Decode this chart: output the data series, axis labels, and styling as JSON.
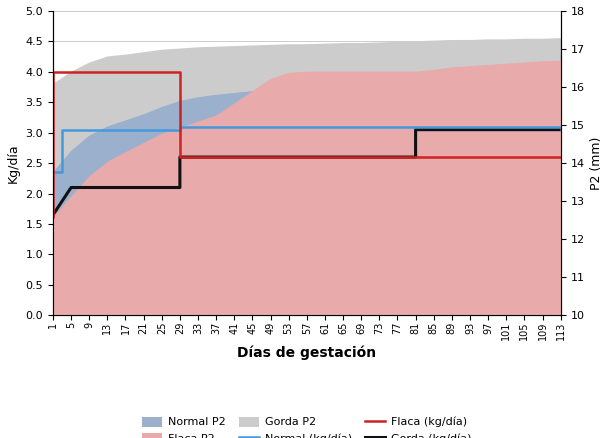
{
  "xlabel": "Días de gestación",
  "ylabel_left": "Kg/día",
  "ylabel_right": "P2 (mm)",
  "ylim_left": [
    0.0,
    5.0
  ],
  "ylim_right": [
    10,
    18
  ],
  "yticks_left": [
    0.0,
    0.5,
    1.0,
    1.5,
    2.0,
    2.5,
    3.0,
    3.5,
    4.0,
    4.5,
    5.0
  ],
  "yticks_right": [
    10,
    11,
    12,
    13,
    14,
    15,
    16,
    17,
    18
  ],
  "xtick_labels": [
    "1",
    "5",
    "9",
    "13",
    "17",
    "21",
    "25",
    "29",
    "33",
    "37",
    "41",
    "45",
    "49",
    "53",
    "57",
    "61",
    "65",
    "69",
    "73",
    "77",
    "81",
    "85",
    "89",
    "93",
    "97",
    "101",
    "105",
    "109",
    "113"
  ],
  "days": [
    1,
    5,
    9,
    13,
    17,
    21,
    25,
    29,
    33,
    37,
    41,
    45,
    49,
    53,
    57,
    61,
    65,
    69,
    73,
    77,
    81,
    85,
    89,
    93,
    97,
    101,
    105,
    109,
    113
  ],
  "gorda_p2_upper": [
    3.8,
    4.0,
    4.15,
    4.25,
    4.28,
    4.32,
    4.36,
    4.38,
    4.4,
    4.41,
    4.42,
    4.43,
    4.44,
    4.45,
    4.45,
    4.46,
    4.47,
    4.47,
    4.48,
    4.49,
    4.5,
    4.51,
    4.52,
    4.52,
    4.53,
    4.53,
    4.54,
    4.54,
    4.55
  ],
  "normal_p2_upper": [
    2.35,
    2.7,
    2.95,
    3.1,
    3.2,
    3.3,
    3.42,
    3.52,
    3.58,
    3.62,
    3.65,
    3.68,
    3.7,
    3.71,
    3.72,
    3.73,
    3.74,
    3.75,
    3.76,
    3.77,
    3.78,
    3.8,
    3.81,
    3.82,
    3.83,
    3.84,
    3.85,
    3.87,
    3.88
  ],
  "flaca_p2_upper": [
    1.6,
    1.95,
    2.28,
    2.52,
    2.68,
    2.83,
    2.98,
    3.08,
    3.18,
    3.28,
    3.48,
    3.68,
    3.88,
    3.98,
    4.0,
    4.0,
    4.0,
    4.0,
    4.0,
    4.0,
    4.0,
    4.03,
    4.07,
    4.09,
    4.11,
    4.13,
    4.15,
    4.17,
    4.18
  ],
  "gorda_p2_color": "#cccccc",
  "normal_p2_color": "#9ab0cc",
  "flaca_p2_color": "#e8aaaa",
  "normal_line_x": [
    1,
    3,
    3,
    29,
    29,
    113
  ],
  "normal_line_y": [
    2.35,
    2.35,
    3.05,
    3.05,
    3.1,
    3.1
  ],
  "flaca_line_x": [
    1,
    1,
    29,
    29,
    113
  ],
  "flaca_line_y": [
    1.6,
    4.0,
    4.0,
    2.6,
    2.6
  ],
  "gorda_line_x": [
    1,
    1,
    5,
    29,
    29,
    81,
    81,
    113
  ],
  "gorda_line_y": [
    1.65,
    1.65,
    2.1,
    2.1,
    2.6,
    2.6,
    3.05,
    3.05
  ],
  "normal_line_color": "#4499dd",
  "flaca_line_color": "#cc2222",
  "gorda_line_color": "#111111",
  "grid_color": "#cccccc",
  "bg_color": "#ffffff"
}
